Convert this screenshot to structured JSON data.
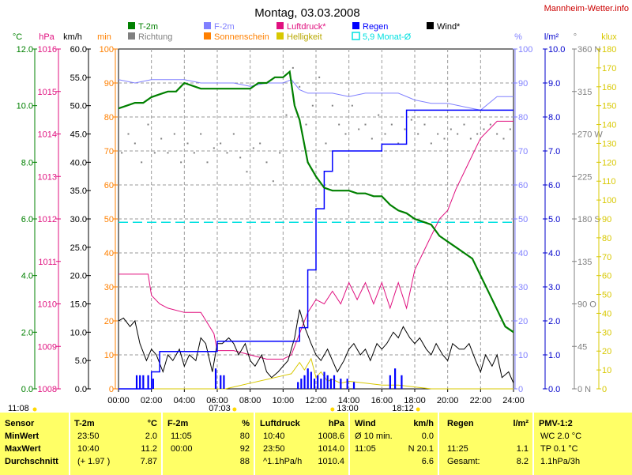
{
  "header": {
    "title": "Montag, 03.03.2008",
    "brand": "Mannheim-Wetter.info"
  },
  "legend": [
    {
      "label": "T-2m",
      "color": "#008000"
    },
    {
      "label": "Richtung",
      "color": "#808080"
    },
    {
      "label": "F-2m",
      "color": "#8080ff"
    },
    {
      "label": "Sonnenschein",
      "color": "#ff8000"
    },
    {
      "label": "Luftdruck*",
      "color": "#e0107f"
    },
    {
      "label": "Helligkeit",
      "color": "#d8c800"
    },
    {
      "label": "Regen",
      "color": "#0000ff"
    },
    {
      "label": "5,9 Monat-Ø",
      "color": "#00e0e0"
    },
    {
      "label": "Wind*",
      "color": "#000000"
    }
  ],
  "axis_units": {
    "temp": "°C",
    "pressure": "hPa",
    "wind": "km/h",
    "minutes": "min",
    "humidity": "%",
    "rain": "l/m²",
    "direction": "°",
    "light": "klux"
  },
  "axes": {
    "temp": [
      "0.0",
      "2.0",
      "4.0",
      "6.0",
      "8.0",
      "10.0",
      "12.0"
    ],
    "pressure": [
      "1008",
      "1009",
      "1010",
      "1011",
      "1012",
      "1013",
      "1014",
      "1015",
      "1016"
    ],
    "wind": [
      "0.0",
      "5.0",
      "10.0",
      "15.0",
      "20.0",
      "25.0",
      "30.0",
      "35.0",
      "40.0",
      "45.0",
      "50.0",
      "55.0",
      "60.0"
    ],
    "minutes": [
      "0",
      "10",
      "20",
      "30",
      "40",
      "50",
      "60",
      "70",
      "80",
      "90",
      "100"
    ],
    "humidity": [
      "0",
      "10",
      "20",
      "30",
      "40",
      "50",
      "60",
      "70",
      "80",
      "90",
      "100"
    ],
    "rain": [
      "0.0",
      "1.0",
      "2.0",
      "3.0",
      "4.0",
      "5.0",
      "6.0",
      "7.0",
      "8.0",
      "9.0",
      "10.0"
    ],
    "direction": [
      "0 N",
      "45",
      "90 O",
      "135",
      "180 S",
      "225",
      "270 W",
      "315",
      "360 N"
    ],
    "light": [
      "0",
      "10",
      "20",
      "30",
      "40",
      "50",
      "60",
      "70",
      "80",
      "90",
      "100",
      "110",
      "120",
      "130",
      "140",
      "150",
      "160",
      "170",
      "180"
    ],
    "time": [
      "00:00",
      "02:00",
      "04:00",
      "06:00",
      "08:00",
      "10:00",
      "12:00",
      "14:00",
      "16:00",
      "18:00",
      "20:00",
      "22:00",
      "24:00"
    ]
  },
  "markers": {
    "sunrise_text": "07:03",
    "noon_text": "13:00",
    "sunset_text": "18:12",
    "daylength_text": "11:08"
  },
  "chart_data": {
    "type": "line",
    "x_unit": "hour of day",
    "xlim": [
      0,
      24
    ],
    "series": [
      {
        "name": "T-2m",
        "unit": "°C",
        "color": "#008000",
        "x": [
          0,
          0.5,
          1,
          1.5,
          2,
          2.5,
          3,
          3.5,
          4,
          4.5,
          5,
          5.5,
          6,
          6.5,
          7,
          7.5,
          8,
          8.5,
          9,
          9.5,
          10,
          10.4,
          10.7,
          11,
          11.5,
          12,
          12.5,
          13,
          13.5,
          14,
          14.5,
          15,
          15.5,
          16,
          16.5,
          17,
          17.5,
          18,
          18.5,
          19,
          19.5,
          20,
          20.5,
          21,
          21.5,
          22,
          22.5,
          23,
          23.5,
          24
        ],
        "y": [
          9.9,
          10.0,
          10.1,
          10.1,
          10.3,
          10.4,
          10.5,
          10.5,
          10.8,
          10.7,
          10.6,
          10.6,
          10.6,
          10.6,
          10.6,
          10.6,
          10.6,
          10.8,
          10.8,
          11.0,
          11.0,
          11.2,
          10.0,
          9.5,
          8.0,
          7.5,
          7.1,
          7.0,
          7.0,
          7.0,
          6.9,
          6.9,
          6.8,
          6.8,
          6.5,
          6.3,
          6.2,
          6.0,
          5.9,
          5.8,
          5.4,
          5.2,
          5.0,
          4.8,
          4.6,
          4.0,
          3.4,
          2.8,
          2.2,
          2.0
        ]
      },
      {
        "name": "F-2m",
        "unit": "%",
        "color": "#8080ff",
        "x": [
          0,
          1,
          2,
          3,
          4,
          5,
          6,
          7,
          8,
          9,
          10,
          10.5,
          11,
          11.5,
          12,
          13,
          14,
          15,
          16,
          17,
          18,
          19,
          20,
          21,
          22,
          22.5,
          23,
          23.5,
          24
        ],
        "y": [
          91,
          90,
          91,
          91,
          91,
          90,
          90,
          90,
          89,
          90,
          90,
          91,
          88,
          87,
          87,
          87,
          86,
          87,
          87,
          87,
          85,
          84,
          84,
          83,
          82,
          84,
          86,
          86,
          86
        ]
      },
      {
        "name": "Luftdruck*",
        "unit": "hPa",
        "color": "#e0107f",
        "x": [
          0,
          1,
          1.8,
          2,
          2.5,
          3,
          4,
          5,
          5.8,
          6,
          7,
          8,
          9,
          10,
          10.5,
          11,
          11.5,
          12,
          12.5,
          13,
          13.5,
          14,
          14.5,
          15,
          15.5,
          16,
          16.5,
          17,
          17.5,
          18,
          18.5,
          19,
          19.5,
          20,
          20.5,
          21,
          21.5,
          22,
          22.5,
          23,
          23.5,
          24
        ],
        "y": [
          1010.7,
          1010.7,
          1010.7,
          1010.2,
          1010.0,
          1009.9,
          1009.8,
          1009.8,
          1009.3,
          1008.9,
          1008.9,
          1008.8,
          1008.7,
          1008.7,
          1008.8,
          1009.3,
          1009.8,
          1010.1,
          1010.0,
          1010.3,
          1010.0,
          1010.5,
          1010.1,
          1010.5,
          1010.0,
          1010.5,
          1009.9,
          1010.5,
          1009.9,
          1010.8,
          1011.2,
          1011.6,
          1012.0,
          1012.2,
          1012.7,
          1013.1,
          1013.5,
          1013.9,
          1014.1,
          1014.3,
          1014.3,
          1014.3
        ]
      },
      {
        "name": "Regen",
        "unit": "l/m²",
        "color": "#0000ff",
        "x": [
          0,
          1,
          1.5,
          2,
          2.5,
          3,
          4,
          5,
          6,
          7,
          8,
          9,
          10,
          10.5,
          11,
          11.5,
          12,
          12.5,
          13,
          14,
          15,
          16,
          16.5,
          17,
          17.5,
          18,
          18.5,
          19,
          20,
          22,
          24
        ],
        "y": [
          0,
          0,
          0,
          0.5,
          1.1,
          1.1,
          1.1,
          1.1,
          1.4,
          1.4,
          1.4,
          1.4,
          1.4,
          1.4,
          1.8,
          3.5,
          5.3,
          6.4,
          7.0,
          7.0,
          7.0,
          7.2,
          7.2,
          7.2,
          8.2,
          8.2,
          8.2,
          8.2,
          8.2,
          8.2,
          8.2
        ]
      },
      {
        "name": "Wind*",
        "unit": "km/h",
        "color": "#000000",
        "x": [
          0,
          0.3,
          0.7,
          1,
          1.3,
          1.7,
          2,
          2.3,
          2.7,
          3,
          3.3,
          3.7,
          4,
          4.3,
          4.7,
          5,
          5.3,
          5.7,
          6,
          6.3,
          6.7,
          7,
          7.3,
          7.7,
          8,
          8.3,
          8.7,
          9,
          9.3,
          9.7,
          10,
          10.3,
          10.7,
          11,
          11.3,
          11.7,
          12,
          12.3,
          12.7,
          13,
          13.3,
          13.7,
          14,
          14.3,
          14.7,
          15,
          15.3,
          15.7,
          16,
          16.3,
          16.7,
          17,
          17.3,
          17.7,
          18,
          18.3,
          18.7,
          19,
          19.3,
          19.7,
          20,
          20.3,
          20.7,
          21,
          21.3,
          21.7,
          22,
          22.3,
          22.7,
          23,
          23.3,
          23.7,
          24
        ],
        "y": [
          12,
          12.5,
          11,
          12,
          8,
          5,
          7,
          6,
          3,
          6,
          5,
          7,
          4,
          6,
          5,
          9,
          8,
          3,
          8,
          8,
          9,
          8,
          6,
          8,
          5,
          4,
          6,
          3,
          2,
          3,
          4,
          5,
          9,
          14,
          11,
          8,
          6,
          5,
          7,
          5,
          3,
          5,
          7,
          8,
          6,
          7,
          5,
          8,
          7,
          8,
          10,
          9,
          11,
          9,
          8,
          9,
          7,
          6,
          8,
          6,
          5,
          8,
          7,
          7,
          8,
          5,
          3,
          6,
          4,
          6,
          2,
          3,
          1
        ]
      },
      {
        "name": "Helligkeit",
        "unit": "klux",
        "color": "#d8c800",
        "x": [
          0,
          6.5,
          7,
          8,
          9,
          10,
          10.5,
          11,
          11.3,
          11.7,
          12,
          12.3,
          12.7,
          13,
          13.5,
          14,
          15,
          16,
          17,
          18,
          19,
          24
        ],
        "y": [
          0,
          0,
          1,
          3,
          5,
          7,
          8,
          14,
          10,
          16,
          6,
          9,
          4,
          5,
          3,
          4,
          3,
          2,
          2,
          1,
          0,
          0
        ]
      },
      {
        "name": "5,9 Monat-Ø",
        "unit": "l/m²",
        "color": "#00e0e0",
        "x": [
          0,
          24
        ],
        "y": [
          4.9,
          4.9
        ]
      },
      {
        "name": "Regen 10 min",
        "unit": "min",
        "color": "#0000ff",
        "x": [
          1.1,
          1.3,
          1.5,
          1.8,
          2.1,
          5.9,
          6.2,
          6.4,
          10.9,
          11.1,
          11.3,
          11.5,
          11.7,
          11.9,
          12.1,
          12.3,
          12.5,
          12.7,
          12.9,
          13.1,
          13.5,
          13.9,
          14.3,
          16.5,
          16.8,
          17.2
        ],
        "y": [
          4,
          4,
          4,
          4,
          3,
          6,
          4,
          4,
          2,
          3,
          4,
          6,
          5,
          3,
          4,
          3,
          5,
          4,
          3,
          4,
          3,
          3,
          2,
          4,
          6,
          4
        ]
      },
      {
        "name": "Richtung",
        "unit": "°",
        "color": "#808080",
        "x": [
          0.2,
          0.6,
          1,
          1.4,
          1.8,
          2.2,
          2.6,
          3,
          3.4,
          3.8,
          4.2,
          4.6,
          5,
          5.4,
          5.8,
          6.2,
          6.6,
          7,
          7.4,
          7.8,
          8.2,
          8.6,
          9,
          9.4,
          9.8,
          10.2,
          10.6,
          11,
          11.4,
          11.8,
          12.2,
          12.6,
          13,
          13.4,
          13.8,
          14.2,
          14.6,
          15,
          15.4,
          15.8,
          16.2,
          16.6,
          17,
          17.4,
          17.8,
          18.2,
          18.6,
          19,
          19.4,
          19.8,
          20.2,
          20.6,
          21,
          21.4,
          21.8,
          22.2,
          22.6,
          23,
          23.4,
          23.8
        ],
        "y": [
          250,
          270,
          260,
          240,
          280,
          250,
          265,
          250,
          270,
          240,
          260,
          250,
          270,
          240,
          255,
          260,
          250,
          270,
          245,
          230,
          255,
          260,
          240,
          220,
          250,
          290,
          340,
          320,
          280,
          300,
          330,
          260,
          300,
          280,
          270,
          300,
          275,
          280,
          265,
          290,
          270,
          280,
          260,
          275,
          285,
          270,
          280,
          260,
          270,
          265,
          275,
          270,
          280,
          265,
          270,
          275,
          280,
          270,
          265,
          275
        ]
      }
    ]
  },
  "stats": {
    "header": {
      "sensor": "Sensor",
      "temp": "T-2m",
      "temp_unit": "°C",
      "hum": "F-2m",
      "hum_unit": "%",
      "press": "Luftdruck",
      "press_unit": "hPa",
      "wind": "Wind",
      "wind_unit": "km/h",
      "rain": "Regen",
      "rain_unit": "l/m²",
      "pmv": "PMV-1:2"
    },
    "rows": [
      {
        "label": "MinWert",
        "temp_time": "23:50",
        "temp": "2.0",
        "hum_time": "11:05",
        "hum": "80",
        "press_time": "10:40",
        "press": "1008.6",
        "wind_desc": "Ø 10 min.",
        "wind": "0.0",
        "rain_time": "",
        "rain": "",
        "pmv": "WC 2.0 °C"
      },
      {
        "label": "MaxWert",
        "temp_time": "10:40",
        "temp": "11.2",
        "hum_time": "00:00",
        "hum": "92",
        "press_time": "23:50",
        "press": "1014.0",
        "wind_desc": "11:05",
        "wind": "N 20.1",
        "rain_time": "11:25",
        "rain": "1.1",
        "pmv": "TP 0.1 °C"
      },
      {
        "label": "Durchschnitt",
        "temp_time": "(+ 1.97 )",
        "temp": "7.87",
        "hum_time": "",
        "hum": "88",
        "press_time": "^1.1hPa/h",
        "press": "1010.4",
        "wind_desc": "",
        "wind": "6.6",
        "rain_time": "Gesamt:",
        "rain": "8.2",
        "pmv": "1.1hPa/3h"
      }
    ]
  }
}
